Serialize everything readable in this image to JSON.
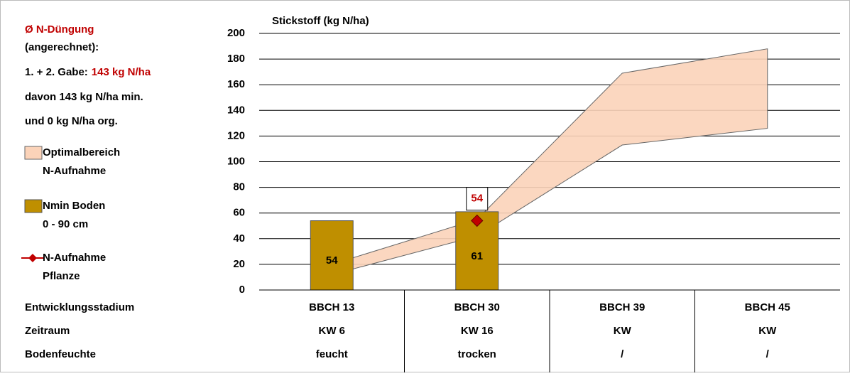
{
  "chart_data": {
    "type": "bar",
    "y_title": "Stickstoff (kg N/ha)",
    "categories": [
      "BBCH 13",
      "BBCH 30",
      "BBCH 39",
      "BBCH 45"
    ],
    "ylim": [
      0,
      200
    ],
    "yticks": [
      0,
      20,
      40,
      60,
      80,
      100,
      120,
      140,
      160,
      180,
      200
    ],
    "grid": true,
    "band": {
      "name": "Optimalbereich\nN-Aufnahme",
      "color": "#fbd3b9",
      "low": [
        12,
        42,
        113,
        126
      ],
      "high": [
        20,
        55,
        169,
        188
      ]
    },
    "series": [
      {
        "name": "Nmin Boden\n0 - 90 cm",
        "color": "#bf8f00",
        "values": [
          54,
          61,
          null,
          null
        ]
      },
      {
        "name": "N-Aufnahme\nPflanze",
        "color": "#c00000",
        "values": [
          null,
          54,
          null,
          null
        ]
      }
    ],
    "notes": [
      [
        {
          "text": "Ø N-Düngung",
          "color": "#c00000"
        }
      ],
      [
        {
          "text": "(angerechnet):"
        }
      ],
      [
        {
          "text": "1. + 2. Gabe:"
        },
        {
          "text": "143 kg N/ha",
          "color": "#c00000"
        }
      ],
      [
        {
          "text": "davon 143 kg N/ha min."
        }
      ],
      [
        {
          "text": "und 0 kg N/ha org."
        }
      ]
    ],
    "table": [
      {
        "label": "Entwicklungsstadium",
        "cells": [
          "BBCH 13",
          "BBCH 30",
          "BBCH 39",
          "BBCH 45"
        ]
      },
      {
        "label": "Zeitraum",
        "cells": [
          "KW 6",
          "KW 16",
          "KW",
          "KW"
        ]
      },
      {
        "label": "Bodenfeuchte",
        "cells": [
          "feucht",
          "trocken",
          "/",
          "/"
        ]
      }
    ]
  }
}
